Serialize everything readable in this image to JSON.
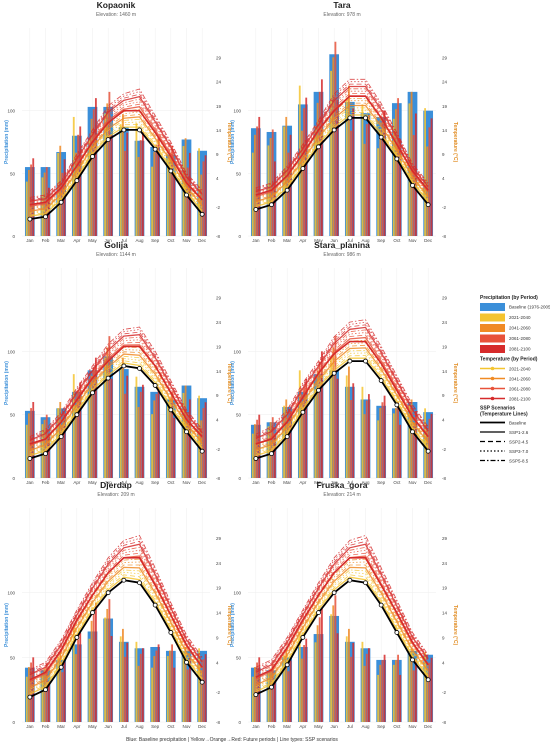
{
  "footer_caption": "Blue: Baseline precipitation | Yellow→Orange→Red: Future periods | Line types: SSP scenarios",
  "months": [
    "Jan",
    "Feb",
    "Mar",
    "Apr",
    "May",
    "Jun",
    "Jul",
    "Aug",
    "Sep",
    "Oct",
    "Nov",
    "Dec"
  ],
  "axes": {
    "left_label": "Precipitation (mm)",
    "right_label": "Temperature (°C)",
    "left_ticks": [
      0,
      50,
      100
    ],
    "right_ticks": [
      -8,
      -2,
      4,
      9,
      14,
      19,
      24,
      29
    ],
    "precip_max": 150,
    "temp_range": [
      -8,
      31
    ]
  },
  "colors": {
    "baseline_bar": "#3b8fd9",
    "p2021": "#f4c430",
    "p2041": "#f08a24",
    "p2061": "#e8523a",
    "p2081": "#d62b2b",
    "baseline_line": "#000000",
    "temp_axis": "#e08a1e",
    "precip_axis": "#3b8fd9"
  },
  "legend": {
    "precip_title": "Precipitation (by Period)",
    "precip_items": [
      {
        "label": "Baseline (1976-2005)",
        "color": "#3b8fd9"
      },
      {
        "label": "2021-2040",
        "color": "#f4c430"
      },
      {
        "label": "2041-2060",
        "color": "#f08a24"
      },
      {
        "label": "2061-2080",
        "color": "#e8523a"
      },
      {
        "label": "2081-2100",
        "color": "#d62b2b"
      }
    ],
    "temp_title": "Temperature (by Period)",
    "temp_items": [
      {
        "label": "2021-2040",
        "color": "#f4c430"
      },
      {
        "label": "2041-2060",
        "color": "#f08a24"
      },
      {
        "label": "2061-2080",
        "color": "#e8523a"
      },
      {
        "label": "2081-2100",
        "color": "#d62b2b"
      }
    ],
    "ssp_title": "SSP Scenarios",
    "ssp_subtitle": "(Temperature Lines)",
    "ssp_items": [
      {
        "label": "Baseline",
        "dash": "solid"
      },
      {
        "label": "SSP1-2.6",
        "dash": "solid"
      },
      {
        "label": "SSP2-4.5",
        "dash": "dashed"
      },
      {
        "label": "SSP3-7.0",
        "dash": "dotted"
      },
      {
        "label": "SSP5-8.5",
        "dash": "dashdot"
      }
    ]
  },
  "chart_data": [
    {
      "type": "bar+line",
      "title": "Kopaonik",
      "subtitle": "Elevation: 1460 m",
      "baseline_precip": [
        55,
        55,
        67,
        80,
        103,
        103,
        87,
        76,
        71,
        65,
        77,
        68
      ],
      "future_precip_peak": [
        62,
        55,
        72,
        95,
        110,
        115,
        97,
        90,
        79,
        72,
        78,
        70
      ],
      "baseline_temp": [
        -4.5,
        -4,
        -1,
        3.5,
        8.5,
        12,
        14,
        14,
        10,
        5.5,
        0.5,
        -3.5
      ],
      "future_temp_2081": [
        -1.5,
        -1,
        2,
        6.5,
        11.5,
        15.5,
        18,
        18,
        13.5,
        8.5,
        3,
        -0.5
      ],
      "future_temp_max": [
        0,
        0.5,
        3.5,
        9,
        14,
        19,
        21.5,
        22.5,
        17,
        11.5,
        5,
        1.5
      ]
    },
    {
      "type": "bar+line",
      "title": "Tara",
      "subtitle": "Elevation: 978 m",
      "baseline_precip": [
        86,
        83,
        88,
        105,
        115,
        145,
        107,
        98,
        95,
        106,
        115,
        100
      ],
      "future_precip_peak": [
        95,
        85,
        95,
        120,
        125,
        155,
        120,
        105,
        100,
        110,
        115,
        102
      ],
      "baseline_temp": [
        -2.5,
        -1.5,
        1.5,
        6,
        10.5,
        14,
        16.5,
        16.5,
        12.5,
        8,
        2.5,
        -1.5
      ],
      "future_temp_2081": [
        0.5,
        1.5,
        4.5,
        9,
        14,
        18,
        21,
        21,
        16.5,
        11,
        5.5,
        1.5
      ],
      "future_temp_max": [
        2,
        3,
        6.5,
        11,
        16,
        21.5,
        24.5,
        24.5,
        19.5,
        13.5,
        7,
        3
      ]
    },
    {
      "type": "bar+line",
      "title": "Golija",
      "subtitle": "Elevation: 1144 m",
      "baseline_precip": [
        53,
        48,
        55,
        68,
        85,
        96,
        86,
        72,
        68,
        62,
        73,
        63
      ],
      "future_precip_peak": [
        60,
        50,
        60,
        82,
        95,
        112,
        95,
        80,
        72,
        68,
        73,
        65
      ],
      "baseline_temp": [
        -4,
        -3,
        0.5,
        5,
        9.5,
        12.5,
        15,
        14.5,
        11,
        6,
        1.5,
        -2.5
      ],
      "future_temp_2081": [
        -1,
        0,
        3.5,
        8,
        12.5,
        16,
        19,
        19,
        15,
        9.5,
        4,
        0.5
      ],
      "future_temp_max": [
        0.5,
        2,
        5.5,
        10.5,
        15,
        19.5,
        22.5,
        23,
        18,
        12,
        6,
        2
      ]
    },
    {
      "type": "bar+line",
      "title": "Stara_planina",
      "subtitle": "Elevation: 986 m",
      "baseline_precip": [
        42,
        44,
        56,
        68,
        82,
        85,
        72,
        62,
        57,
        55,
        60,
        52
      ],
      "future_precip_peak": [
        50,
        48,
        62,
        85,
        100,
        112,
        88,
        72,
        65,
        60,
        62,
        55
      ],
      "baseline_temp": [
        -4,
        -3,
        0.5,
        5.5,
        10,
        13.5,
        16,
        16,
        12,
        7,
        1.5,
        -2.5
      ],
      "future_temp_2081": [
        -1,
        0,
        3.5,
        8.5,
        13.5,
        17.5,
        20,
        20,
        15.5,
        10,
        4.5,
        0.5
      ],
      "future_temp_max": [
        1,
        2.5,
        6,
        11.5,
        16,
        21,
        24,
        24.5,
        19,
        13,
        7,
        2.5
      ]
    },
    {
      "type": "bar+line",
      "title": "Djerdap",
      "subtitle": "Elevation: 209 m",
      "baseline_precip": [
        42,
        40,
        48,
        60,
        70,
        80,
        62,
        57,
        58,
        55,
        55,
        55
      ],
      "future_precip_peak": [
        50,
        45,
        55,
        75,
        92,
        95,
        72,
        62,
        60,
        60,
        58,
        57
      ],
      "baseline_temp": [
        -3,
        -1.5,
        3,
        9,
        14,
        18,
        20.5,
        20,
        15.5,
        10,
        4,
        0
      ],
      "future_temp_2081": [
        0.5,
        2,
        6.5,
        12.5,
        17.5,
        22,
        25,
        25,
        19.5,
        13.5,
        7.5,
        3
      ],
      "future_temp_max": [
        2.5,
        4,
        8.5,
        14.5,
        20,
        25,
        28.5,
        29.5,
        23,
        16,
        9.5,
        5
      ]
    },
    {
      "type": "bar+line",
      "title": "Fruska_gora",
      "subtitle": "Elevation: 214 m",
      "baseline_precip": [
        42,
        40,
        50,
        58,
        68,
        82,
        62,
        57,
        48,
        48,
        55,
        52
      ],
      "future_precip_peak": [
        50,
        45,
        56,
        70,
        88,
        98,
        72,
        62,
        52,
        52,
        57,
        54
      ],
      "baseline_temp": [
        -2.5,
        -1,
        3.5,
        9,
        14,
        18,
        20.5,
        20,
        15.5,
        10,
        4.5,
        0.5
      ],
      "future_temp_2081": [
        1,
        2.5,
        7,
        12.5,
        17.5,
        22,
        25,
        25,
        19.5,
        14,
        8,
        3.5
      ],
      "future_temp_max": [
        3,
        4.5,
        9,
        14.5,
        20,
        25,
        28.5,
        29.5,
        23,
        16.5,
        10,
        5.5
      ]
    }
  ]
}
